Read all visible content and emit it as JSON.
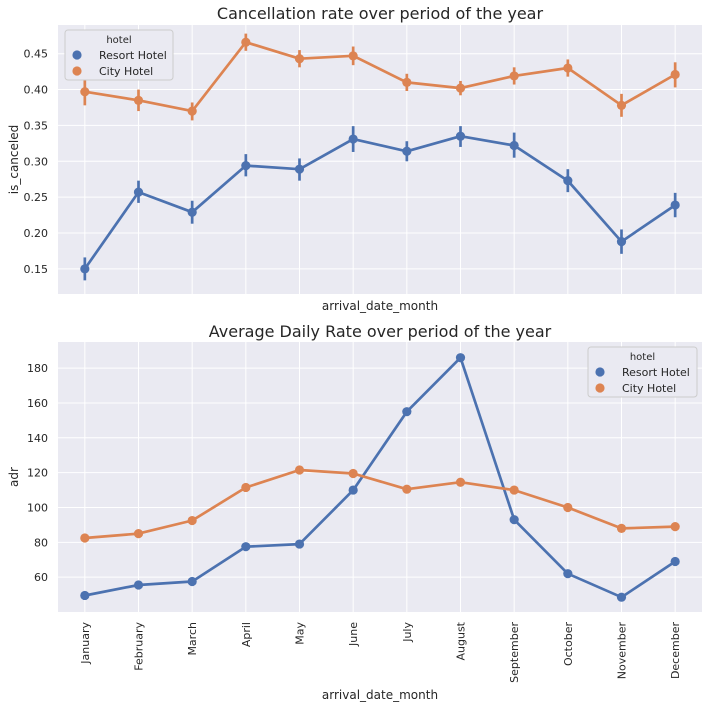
{
  "chart_data": [
    {
      "type": "line",
      "title": "Cancellation rate over period of the year",
      "xlabel": "arrival_date_month",
      "ylabel": "is_canceled",
      "categories": [
        "January",
        "February",
        "March",
        "April",
        "May",
        "June",
        "July",
        "August",
        "September",
        "October",
        "November",
        "December"
      ],
      "show_x_tick_labels": false,
      "ylim": [
        0.115,
        0.49
      ],
      "yticks": [
        "0.15",
        "0.20",
        "0.25",
        "0.30",
        "0.35",
        "0.40",
        "0.45"
      ],
      "grid": true,
      "legend": {
        "title": "hotel",
        "placement": "top-left"
      },
      "series": [
        {
          "name": "Resort Hotel",
          "color": "#4c72b0",
          "values": [
            0.15,
            0.257,
            0.229,
            0.294,
            0.289,
            0.331,
            0.314,
            0.335,
            0.322,
            0.273,
            0.188,
            0.239
          ],
          "ci_low": [
            0.134,
            0.242,
            0.213,
            0.279,
            0.273,
            0.313,
            0.3,
            0.32,
            0.305,
            0.257,
            0.171,
            0.222
          ],
          "ci_high": [
            0.166,
            0.273,
            0.245,
            0.31,
            0.304,
            0.349,
            0.328,
            0.349,
            0.34,
            0.289,
            0.205,
            0.256
          ]
        },
        {
          "name": "City Hotel",
          "color": "#dd8452",
          "values": [
            0.397,
            0.385,
            0.37,
            0.466,
            0.443,
            0.447,
            0.41,
            0.402,
            0.419,
            0.43,
            0.378,
            0.421
          ],
          "ci_low": [
            0.378,
            0.37,
            0.357,
            0.454,
            0.431,
            0.434,
            0.398,
            0.392,
            0.407,
            0.418,
            0.362,
            0.403
          ],
          "ci_high": [
            0.414,
            0.4,
            0.382,
            0.478,
            0.455,
            0.46,
            0.422,
            0.412,
            0.431,
            0.442,
            0.394,
            0.438
          ]
        }
      ]
    },
    {
      "type": "line",
      "title": "Average Daily Rate over period of the year",
      "xlabel": "arrival_date_month",
      "ylabel": "adr",
      "categories": [
        "January",
        "February",
        "March",
        "April",
        "May",
        "June",
        "July",
        "August",
        "September",
        "October",
        "November",
        "December"
      ],
      "show_x_tick_labels": true,
      "ylim": [
        40,
        195
      ],
      "yticks": [
        "60",
        "80",
        "100",
        "120",
        "140",
        "160",
        "180"
      ],
      "grid": true,
      "legend": {
        "title": "hotel",
        "placement": "top-right"
      },
      "series": [
        {
          "name": "Resort Hotel",
          "color": "#4c72b0",
          "values": [
            49.5,
            55.5,
            57.5,
            77.5,
            79,
            110,
            155,
            186,
            93,
            62,
            48.5,
            69
          ],
          "ci_low": [
            48.8,
            54.8,
            56.8,
            76.7,
            78.2,
            108.8,
            153.7,
            184.6,
            91.8,
            61.2,
            47.7,
            67.8
          ],
          "ci_high": [
            50.2,
            56.2,
            58.2,
            78.3,
            79.8,
            111.2,
            156.3,
            187.4,
            94.2,
            62.8,
            49.3,
            70.2
          ]
        },
        {
          "name": "City Hotel",
          "color": "#dd8452",
          "values": [
            82.5,
            85,
            92.5,
            111.5,
            121.5,
            119.5,
            110.5,
            114.5,
            110,
            100,
            88,
            89
          ],
          "ci_low": [
            81.8,
            84.3,
            91.8,
            110.8,
            120.8,
            118.8,
            109.8,
            113.8,
            109.3,
            99.3,
            87.3,
            88.2
          ],
          "ci_high": [
            83.2,
            85.7,
            93.2,
            112.2,
            122.2,
            120.2,
            111.2,
            115.2,
            110.7,
            100.7,
            88.7,
            89.8
          ]
        }
      ]
    }
  ]
}
